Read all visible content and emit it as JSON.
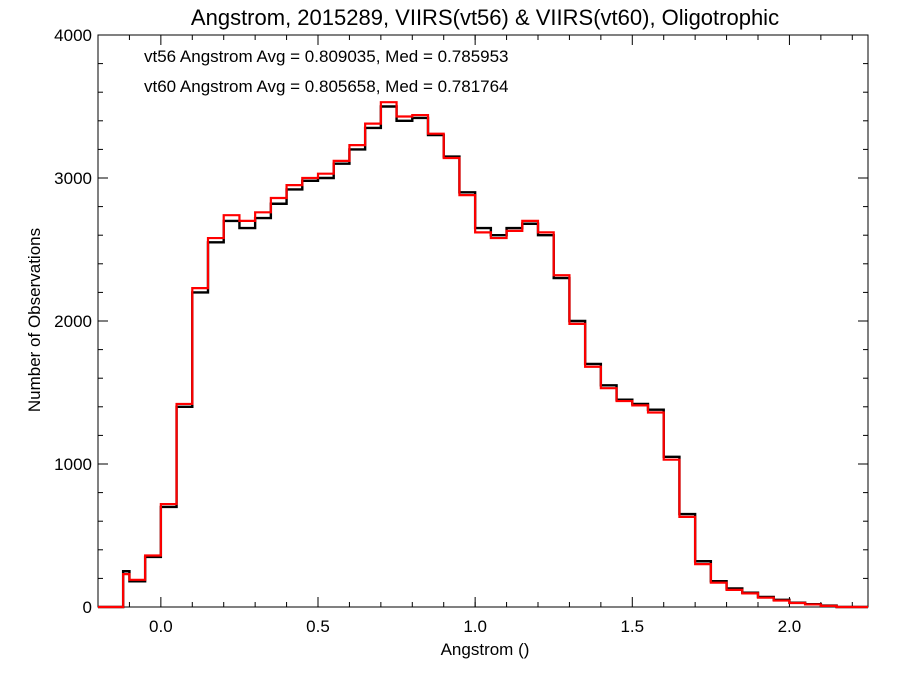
{
  "chart_data": {
    "type": "line",
    "title": "Angstrom, 2015289, VIIRS(vt56) & VIIRS(vt60), Oligotrophic",
    "xlabel": "Angstrom ()",
    "ylabel": "Number of Observations",
    "xlim": [
      -0.2,
      2.25
    ],
    "ylim": [
      0,
      4000
    ],
    "x_ticks": [
      "0.0",
      "0.5",
      "1.0",
      "1.5",
      "2.0"
    ],
    "y_ticks": [
      "0",
      "1000",
      "2000",
      "3000",
      "4000"
    ],
    "step": "histogram",
    "grid": false,
    "annotations": [
      {
        "text": "vt56 Angstrom Avg = 0.809035, Med = 0.785953",
        "color": "#000000"
      },
      {
        "text": "vt60 Angstrom Avg = 0.805658, Med = 0.781764",
        "color": "#ff0000"
      }
    ],
    "series": [
      {
        "color": "#000000",
        "x": [
          -0.2,
          -0.15,
          -0.12,
          -0.1,
          -0.05,
          0.0,
          0.05,
          0.1,
          0.15,
          0.2,
          0.25,
          0.3,
          0.35,
          0.4,
          0.45,
          0.5,
          0.55,
          0.6,
          0.65,
          0.7,
          0.75,
          0.8,
          0.85,
          0.9,
          0.95,
          1.0,
          1.05,
          1.1,
          1.15,
          1.2,
          1.25,
          1.3,
          1.35,
          1.4,
          1.45,
          1.5,
          1.55,
          1.6,
          1.65,
          1.7,
          1.75,
          1.8,
          1.85,
          1.9,
          1.95,
          2.0,
          2.05,
          2.1,
          2.15,
          2.2,
          2.25
        ],
        "y": [
          0,
          0,
          250,
          180,
          350,
          700,
          1400,
          2200,
          2550,
          2700,
          2650,
          2720,
          2820,
          2920,
          2980,
          3000,
          3100,
          3200,
          3350,
          3500,
          3400,
          3420,
          3300,
          3150,
          2900,
          2650,
          2600,
          2650,
          2680,
          2600,
          2300,
          2000,
          1700,
          1550,
          1450,
          1420,
          1380,
          1050,
          650,
          320,
          180,
          130,
          100,
          70,
          50,
          30,
          20,
          10,
          0,
          0,
          0
        ]
      },
      {
        "color": "#ff0000",
        "x": [
          -0.2,
          -0.15,
          -0.12,
          -0.1,
          -0.05,
          0.0,
          0.05,
          0.1,
          0.15,
          0.2,
          0.25,
          0.3,
          0.35,
          0.4,
          0.45,
          0.5,
          0.55,
          0.6,
          0.65,
          0.7,
          0.75,
          0.8,
          0.85,
          0.9,
          0.95,
          1.0,
          1.05,
          1.1,
          1.15,
          1.2,
          1.25,
          1.3,
          1.35,
          1.4,
          1.45,
          1.5,
          1.55,
          1.6,
          1.65,
          1.7,
          1.75,
          1.8,
          1.85,
          1.9,
          1.95,
          2.0,
          2.05,
          2.1,
          2.15,
          2.2,
          2.25
        ],
        "y": [
          0,
          0,
          230,
          190,
          360,
          720,
          1420,
          2230,
          2580,
          2740,
          2700,
          2760,
          2860,
          2950,
          3000,
          3030,
          3120,
          3230,
          3380,
          3530,
          3430,
          3440,
          3310,
          3140,
          2880,
          2620,
          2580,
          2630,
          2700,
          2620,
          2320,
          1980,
          1680,
          1530,
          1440,
          1410,
          1360,
          1030,
          630,
          300,
          170,
          120,
          95,
          65,
          45,
          28,
          18,
          8,
          0,
          0,
          0
        ]
      }
    ]
  }
}
